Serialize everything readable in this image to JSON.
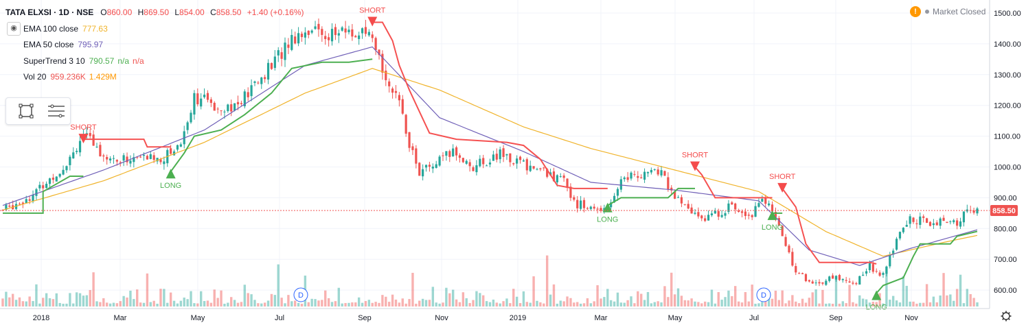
{
  "header": {
    "symbol_line": "TATA ELXSI · 1D · NSE",
    "open_label": "O",
    "open": "860.00",
    "high_label": "H",
    "high": "869.50",
    "low_label": "L",
    "low": "854.00",
    "close_label": "C",
    "close": "858.50",
    "change": "+1.40 (+0.16%)"
  },
  "indicators": [
    {
      "name": "EMA 100 close",
      "value": "777.63",
      "color": "#f0b32a"
    },
    {
      "name": "EMA 50 close",
      "value": "795.97",
      "color": "#6f5fb7"
    },
    {
      "name": "SuperTrend 3 10",
      "value": "790.57",
      "extra1": "n/a",
      "extra2": "n/a",
      "color": "#4caf50",
      "extra_color": "#ef5350"
    },
    {
      "name": "Vol 20",
      "value": "959.236K",
      "extra1": "1.429M",
      "color": "#ef5350",
      "extra_color": "#ff9800"
    }
  ],
  "market_status": "Market Closed",
  "last_price_tag": "858.50",
  "icons": [
    "eye-icon",
    "rectangle-tool-icon",
    "menu-lines-icon",
    "warning-icon",
    "settings-gear-icon",
    "dividend-icon"
  ],
  "colors": {
    "up": "#26a69a",
    "down": "#ef5350",
    "supertrend_up": "#4caf50",
    "supertrend_down": "#f55151",
    "ema100": "#f0b32a",
    "ema50": "#6f5fb7"
  },
  "chart_data": {
    "type": "candlestick",
    "title": "TATA ELXSI · 1D · NSE",
    "ylim": [
      560,
      1525
    ],
    "y_ticks": [
      "1500.00",
      "1400.00",
      "1300.00",
      "1200.00",
      "1100.00",
      "1000.00",
      "900.00",
      "800.00",
      "700.00",
      "600.00"
    ],
    "x_ticks": [
      "2018",
      "Mar",
      "May",
      "Jul",
      "Sep",
      "Nov",
      "2019",
      "Mar",
      "May",
      "Jul",
      "Sep",
      "Nov"
    ],
    "price_path": [
      [
        0,
        860
      ],
      [
        9,
        910
      ],
      [
        18,
        1000
      ],
      [
        24,
        1105
      ],
      [
        28,
        1060
      ],
      [
        33,
        1020
      ],
      [
        40,
        1030
      ],
      [
        48,
        1030
      ],
      [
        53,
        1080
      ],
      [
        57,
        1230
      ],
      [
        63,
        1200
      ],
      [
        70,
        1200
      ],
      [
        80,
        1330
      ],
      [
        86,
        1420
      ],
      [
        91,
        1450
      ],
      [
        97,
        1430
      ],
      [
        103,
        1440
      ],
      [
        109,
        1420
      ],
      [
        114,
        1300
      ],
      [
        119,
        1170
      ],
      [
        121,
        1080
      ],
      [
        124,
        980
      ],
      [
        129,
        1010
      ],
      [
        134,
        1050
      ],
      [
        140,
        1000
      ],
      [
        148,
        1040
      ],
      [
        155,
        1010
      ],
      [
        162,
        980
      ],
      [
        167,
        950
      ],
      [
        171,
        880
      ],
      [
        176,
        860
      ],
      [
        180,
        875
      ],
      [
        185,
        970
      ],
      [
        190,
        975
      ],
      [
        196,
        985
      ],
      [
        200,
        900
      ],
      [
        205,
        850
      ],
      [
        210,
        835
      ],
      [
        216,
        870
      ],
      [
        223,
        850
      ],
      [
        226,
        905
      ],
      [
        229,
        850
      ],
      [
        232,
        780
      ],
      [
        236,
        660
      ],
      [
        241,
        620
      ],
      [
        248,
        640
      ],
      [
        254,
        625
      ],
      [
        258,
        680
      ],
      [
        262,
        645
      ],
      [
        266,
        765
      ],
      [
        270,
        830
      ],
      [
        278,
        820
      ],
      [
        284,
        815
      ],
      [
        287,
        865
      ],
      [
        290,
        858
      ]
    ],
    "ema100": [
      [
        0,
        860
      ],
      [
        30,
        955
      ],
      [
        60,
        1080
      ],
      [
        90,
        1240
      ],
      [
        110,
        1320
      ],
      [
        130,
        1250
      ],
      [
        155,
        1130
      ],
      [
        175,
        1060
      ],
      [
        200,
        990
      ],
      [
        225,
        920
      ],
      [
        245,
        790
      ],
      [
        262,
        710
      ],
      [
        280,
        755
      ],
      [
        290,
        777.63
      ]
    ],
    "ema50": [
      [
        0,
        875
      ],
      [
        30,
        990
      ],
      [
        60,
        1120
      ],
      [
        90,
        1330
      ],
      [
        110,
        1390
      ],
      [
        130,
        1160
      ],
      [
        155,
        1050
      ],
      [
        175,
        950
      ],
      [
        200,
        925
      ],
      [
        225,
        890
      ],
      [
        240,
        730
      ],
      [
        255,
        680
      ],
      [
        270,
        735
      ],
      [
        290,
        795.97
      ]
    ],
    "supertrend": [
      {
        "dir": "up",
        "points": [
          [
            0,
            850
          ],
          [
            12,
            850
          ],
          [
            12,
            920
          ],
          [
            20,
            970
          ],
          [
            24,
            970
          ]
        ]
      },
      {
        "dir": "down",
        "points": [
          [
            24,
            1090
          ],
          [
            42,
            1090
          ],
          [
            43,
            1065
          ],
          [
            50,
            1065
          ]
        ]
      },
      {
        "dir": "up",
        "points": [
          [
            50,
            985
          ],
          [
            54,
            1045
          ],
          [
            57,
            1100
          ],
          [
            65,
            1120
          ],
          [
            72,
            1170
          ],
          [
            80,
            1240
          ],
          [
            86,
            1320
          ],
          [
            95,
            1340
          ],
          [
            103,
            1340
          ],
          [
            110,
            1350
          ]
        ]
      },
      {
        "dir": "down",
        "points": [
          [
            110,
            1470
          ],
          [
            113,
            1470
          ],
          [
            116,
            1410
          ],
          [
            118,
            1330
          ],
          [
            121,
            1250
          ],
          [
            124,
            1180
          ],
          [
            127,
            1110
          ],
          [
            135,
            1090
          ],
          [
            150,
            1080
          ],
          [
            155,
            1070
          ],
          [
            160,
            1025
          ],
          [
            165,
            940
          ],
          [
            170,
            930
          ],
          [
            180,
            930
          ]
        ]
      },
      {
        "dir": "up",
        "points": [
          [
            180,
            875
          ],
          [
            184,
            900
          ],
          [
            198,
            900
          ],
          [
            201,
            930
          ],
          [
            206,
            930
          ]
        ]
      },
      {
        "dir": "down",
        "points": [
          [
            206,
            1000
          ],
          [
            208,
            975
          ],
          [
            212,
            900
          ],
          [
            229,
            900
          ]
        ]
      },
      {
        "dir": "up",
        "points": [
          [
            229,
            850
          ],
          [
            232,
            850
          ]
        ]
      },
      {
        "dir": "down",
        "points": [
          [
            232,
            930
          ],
          [
            236,
            870
          ],
          [
            239,
            750
          ],
          [
            243,
            690
          ],
          [
            258,
            690
          ],
          [
            260,
            685
          ]
        ]
      },
      {
        "dir": "up",
        "points": [
          [
            260,
            590
          ],
          [
            262,
            615
          ],
          [
            268,
            640
          ],
          [
            271,
            710
          ],
          [
            273,
            750
          ],
          [
            282,
            750
          ],
          [
            284,
            775
          ],
          [
            290,
            790.57
          ]
        ]
      }
    ],
    "signals": [
      {
        "type": "SHORT",
        "i": 24,
        "price": 1090
      },
      {
        "type": "LONG",
        "i": 50,
        "price": 985
      },
      {
        "type": "SHORT",
        "i": 110,
        "price": 1470
      },
      {
        "type": "LONG",
        "i": 180,
        "price": 875
      },
      {
        "type": "SHORT",
        "i": 206,
        "price": 1000
      },
      {
        "type": "LONG",
        "i": 229,
        "price": 850
      },
      {
        "type": "SHORT",
        "i": 232,
        "price": 930
      },
      {
        "type": "LONG",
        "i": 260,
        "price": 590
      }
    ]
  }
}
